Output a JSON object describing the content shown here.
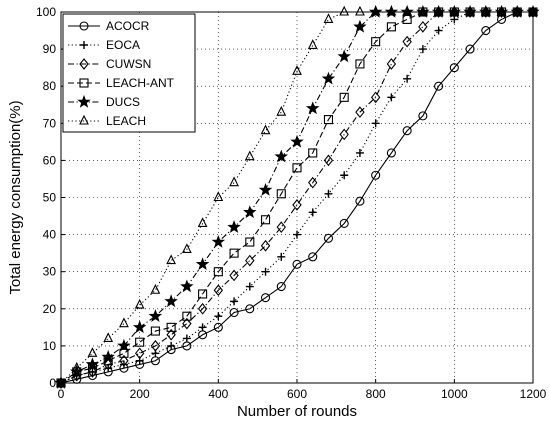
{
  "chart_data": {
    "type": "line",
    "title": "",
    "xlabel": "Number of rounds",
    "ylabel": "Total energy consumption(%)",
    "xlim": [
      0,
      1200
    ],
    "ylim": [
      0,
      100
    ],
    "xticks": [
      "0",
      "200",
      "400",
      "600",
      "800",
      "1000",
      "1200"
    ],
    "yticks": [
      "0",
      "10",
      "20",
      "30",
      "40",
      "50",
      "60",
      "70",
      "80",
      "90",
      "100"
    ],
    "grid": true,
    "legend": "top-left",
    "series": [
      {
        "name": "ACOCR",
        "dash": "solid",
        "marker": "circle",
        "x": [
          0,
          40,
          80,
          120,
          160,
          200,
          240,
          280,
          320,
          360,
          400,
          440,
          480,
          520,
          560,
          600,
          640,
          680,
          720,
          760,
          800,
          840,
          880,
          920,
          960,
          1000,
          1040,
          1080,
          1120,
          1160,
          1200
        ],
        "y": [
          0,
          1,
          2,
          3,
          4,
          5,
          6,
          9,
          10,
          13,
          15,
          19,
          20,
          23,
          26,
          32,
          34,
          39,
          43,
          49,
          56,
          62,
          68,
          72,
          80,
          85,
          90,
          95,
          98,
          100,
          100
        ]
      },
      {
        "name": "EOCA",
        "dash": "dotted",
        "marker": "plus",
        "x": [
          0,
          40,
          80,
          120,
          160,
          200,
          240,
          280,
          320,
          360,
          400,
          440,
          480,
          520,
          560,
          600,
          640,
          680,
          720,
          760,
          800,
          840,
          880,
          920,
          960,
          1000,
          1040,
          1080,
          1120,
          1160,
          1200
        ],
        "y": [
          0,
          2,
          3,
          4,
          5,
          6,
          8,
          10,
          12,
          15,
          18,
          22,
          26,
          30,
          34,
          40,
          46,
          51,
          56,
          62,
          70,
          77,
          82,
          90,
          95,
          98,
          100,
          100,
          100,
          100,
          100
        ]
      },
      {
        "name": "CUWSN",
        "dash": "dashdot",
        "marker": "diamond",
        "x": [
          0,
          40,
          80,
          120,
          160,
          200,
          240,
          280,
          320,
          360,
          400,
          440,
          480,
          520,
          560,
          600,
          640,
          680,
          720,
          760,
          800,
          840,
          880,
          920,
          960,
          1000,
          1040,
          1080,
          1120,
          1160,
          1200
        ],
        "y": [
          0,
          2,
          3,
          5,
          6,
          8,
          10,
          13,
          16,
          20,
          25,
          29,
          33,
          37,
          42,
          48,
          54,
          60,
          67,
          73,
          77,
          86,
          92,
          96,
          100,
          100,
          100,
          100,
          100,
          100,
          100
        ]
      },
      {
        "name": "LEACH-ANT",
        "dash": "dashed",
        "marker": "square",
        "x": [
          0,
          40,
          80,
          120,
          160,
          200,
          240,
          280,
          320,
          360,
          400,
          440,
          480,
          520,
          560,
          600,
          640,
          680,
          720,
          760,
          800,
          840,
          880,
          920,
          960,
          1000,
          1040,
          1080,
          1120,
          1160,
          1200
        ],
        "y": [
          0,
          3,
          4,
          6,
          8,
          11,
          14,
          15,
          18,
          24,
          30,
          35,
          38,
          44,
          51,
          58,
          62,
          71,
          77,
          86,
          92,
          96,
          98,
          100,
          100,
          100,
          100,
          100,
          100,
          100,
          100
        ]
      },
      {
        "name": "DUCS",
        "dash": "dashdot",
        "marker": "star",
        "x": [
          0,
          40,
          80,
          120,
          160,
          200,
          240,
          280,
          320,
          360,
          400,
          440,
          480,
          520,
          560,
          600,
          640,
          680,
          720,
          760,
          800,
          840,
          880,
          920,
          960,
          1000,
          1040,
          1080,
          1120,
          1160,
          1200
        ],
        "y": [
          0,
          3,
          5,
          7,
          10,
          15,
          18,
          22,
          26,
          32,
          38,
          42,
          46,
          52,
          61,
          65,
          74,
          82,
          88,
          96,
          100,
          100,
          100,
          100,
          100,
          100,
          100,
          100,
          100,
          100,
          100
        ]
      },
      {
        "name": "LEACH",
        "dash": "dotted",
        "marker": "triangle",
        "x": [
          0,
          40,
          80,
          120,
          160,
          200,
          240,
          280,
          320,
          360,
          400,
          440,
          480,
          520,
          560,
          600,
          640,
          680,
          720,
          760,
          800,
          840,
          880,
          920,
          960,
          1000,
          1040,
          1080,
          1120,
          1160,
          1200
        ],
        "y": [
          0,
          4,
          8,
          12,
          16,
          21,
          25,
          33,
          36,
          43,
          50,
          54,
          61,
          68,
          73,
          84,
          91,
          98,
          100,
          100,
          100,
          100,
          100,
          100,
          100,
          100,
          100,
          100,
          100,
          100,
          100
        ]
      }
    ]
  }
}
